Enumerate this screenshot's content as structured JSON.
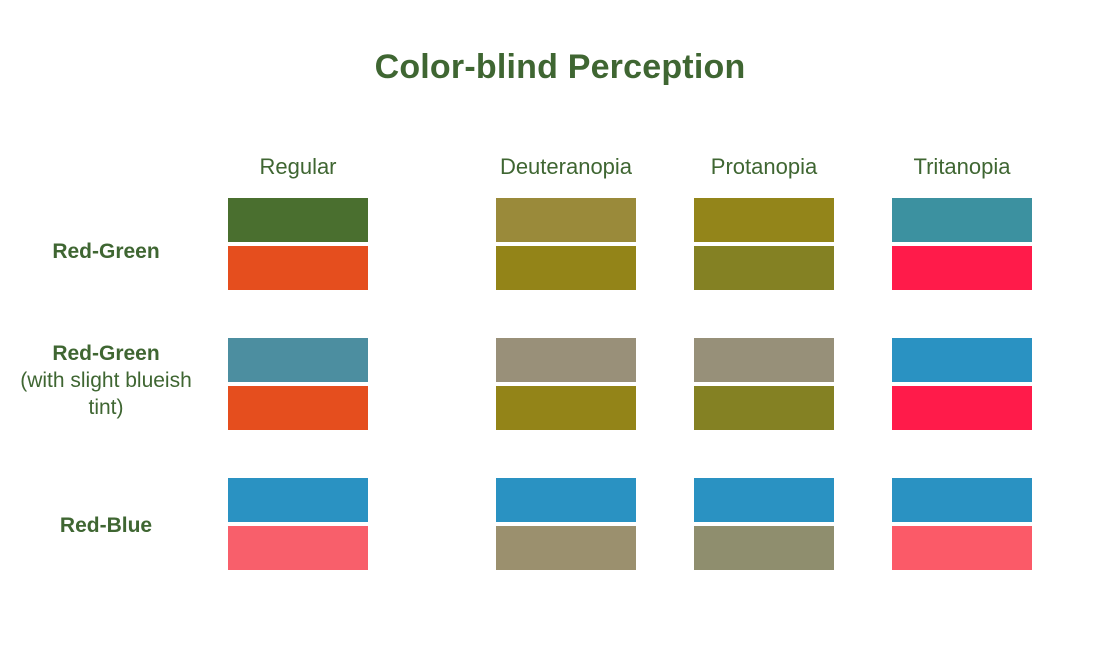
{
  "title": "Color-blind Perception",
  "columns": [
    "Regular",
    "Deuteranopia",
    "Protanopia",
    "Tritanopia"
  ],
  "rows": [
    {
      "label": "Red-Green",
      "sublabel": "",
      "swatches": [
        [
          "#4a6f2f",
          "#e54e1e"
        ],
        [
          "#9a8a3a",
          "#938418"
        ],
        [
          "#93851a",
          "#848123"
        ],
        [
          "#3c91a0",
          "#ff1b4a"
        ]
      ]
    },
    {
      "label": "Red-Green",
      "sublabel": "(with slight blueish tint)",
      "swatches": [
        [
          "#4c8ea0",
          "#e54e1e"
        ],
        [
          "#999079",
          "#938418"
        ],
        [
          "#979079",
          "#848123"
        ],
        [
          "#2a92c2",
          "#ff1b4a"
        ]
      ]
    },
    {
      "label": "Red-Blue",
      "sublabel": "",
      "swatches": [
        [
          "#2a92c2",
          "#f85f6b"
        ],
        [
          "#2a92c2",
          "#9b906e"
        ],
        [
          "#2a92c2",
          "#8f8e6e"
        ],
        [
          "#2a92c2",
          "#fb5a68"
        ]
      ]
    }
  ]
}
